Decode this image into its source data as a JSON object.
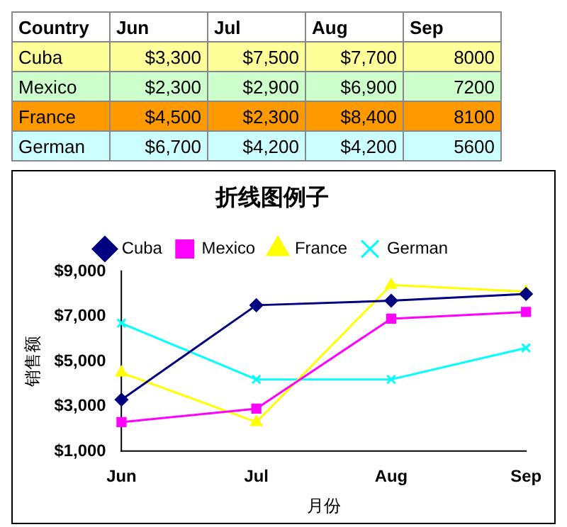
{
  "chart_data": {
    "type": "line",
    "title": "折线图例子",
    "xlabel": "月份",
    "ylabel": "销售额",
    "legend_title": "Country",
    "categories": [
      "Jun",
      "Jul",
      "Aug",
      "Sep"
    ],
    "series": [
      {
        "name": "Cuba",
        "color": "#000080",
        "marker": "diamond",
        "values": [
          3300,
          7500,
          7700,
          8000
        ],
        "value_labels": [
          "$3,300",
          "$7,500",
          "$7,700",
          "8000"
        ]
      },
      {
        "name": "Mexico",
        "color": "#ff00ff",
        "marker": "square",
        "values": [
          2300,
          2900,
          6900,
          7200
        ],
        "value_labels": [
          "$2,300",
          "$2,900",
          "$6,900",
          "7200"
        ]
      },
      {
        "name": "France",
        "color": "#ffff00",
        "marker": "triangle",
        "values": [
          4500,
          2300,
          8400,
          8100
        ],
        "value_labels": [
          "$4,500",
          "$2,300",
          "$8,400",
          "8100"
        ]
      },
      {
        "name": "German",
        "color": "#00ffff",
        "marker": "cross",
        "values": [
          6700,
          4200,
          4200,
          5600
        ],
        "value_labels": [
          "$6,700",
          "$4,200",
          "$4,200",
          "5600"
        ]
      }
    ],
    "ylim": [
      1000,
      9000
    ],
    "yticks": [
      {
        "value": 1000,
        "label": "$1,000"
      },
      {
        "value": 3000,
        "label": "$3,000"
      },
      {
        "value": 5000,
        "label": "$5,000"
      },
      {
        "value": 7000,
        "label": "$7,000"
      },
      {
        "value": 9000,
        "label": "$9,000"
      }
    ],
    "grid": false,
    "legend": "top",
    "line_style": "solid"
  }
}
